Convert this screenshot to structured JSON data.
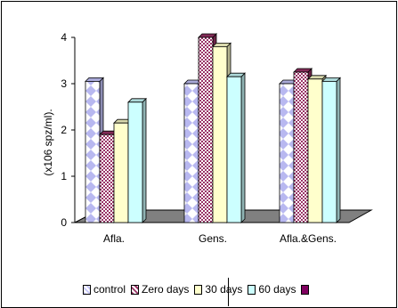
{
  "chart_data": {
    "type": "bar",
    "title": "",
    "xlabel": "",
    "ylabel": "(x106 spz/ml).",
    "ylim": [
      0,
      4
    ],
    "yticks": [
      "0",
      "1",
      "2",
      "3",
      "4"
    ],
    "categories": [
      "Afla.",
      "Gens.",
      "Afla.&Gens."
    ],
    "series": [
      {
        "name": "control",
        "values": [
          3.05,
          3.0,
          3.0
        ],
        "color": "#c8c8ff",
        "pattern": "diamond"
      },
      {
        "name": "Zero days",
        "values": [
          1.9,
          4.0,
          3.25
        ],
        "color": "#993366",
        "pattern": "check"
      },
      {
        "name": "30 days",
        "values": [
          2.15,
          3.8,
          3.1
        ],
        "color": "#ffffcc",
        "pattern": "solid"
      },
      {
        "name": "60 days",
        "values": [
          2.6,
          3.15,
          3.05
        ],
        "color": "#ccffff",
        "pattern": "solid"
      }
    ],
    "extra_legend_color": "#800060",
    "legend_position": "bottom",
    "grid": false
  }
}
